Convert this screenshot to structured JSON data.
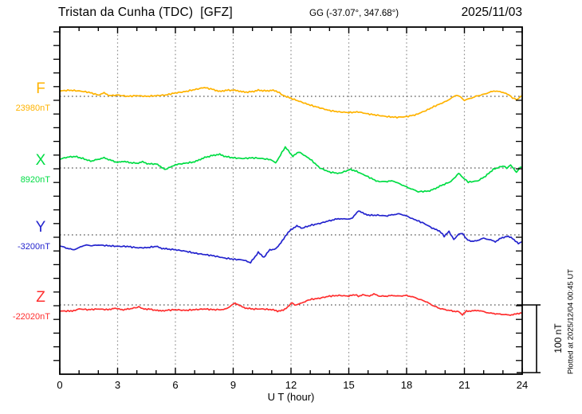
{
  "header": {
    "title": "Tristan da Cunha (TDC)  [GFZ]",
    "coordinates": "GG (-37.07°, 347.68°)",
    "date": "2025/11/03"
  },
  "x_axis": {
    "label": "U T (hour)",
    "tick_labels": [
      0,
      3,
      6,
      9,
      12,
      15,
      18,
      21,
      24
    ]
  },
  "scale_bar": {
    "label": "100 nT"
  },
  "footer_note": "Plotted at 2025/12/04 00:45 UT",
  "chart_data": {
    "type": "line",
    "title": "Tristan da Cunha (TDC) [GFZ]",
    "station": {
      "name": "Tristan da Cunha",
      "code": "TDC",
      "institute": "GFZ",
      "geographic_coords": "GG (-37.07°, 347.68°)"
    },
    "date": "2025/11/03",
    "xlabel": "U T (hour)",
    "x_range": [
      0,
      24
    ],
    "x_ticks": [
      0,
      3,
      6,
      9,
      12,
      15,
      18,
      21,
      24
    ],
    "x_minor_tick_hours": 1,
    "grid": {
      "vertical_dotted_every_hours": 3,
      "horizontal_dotted_baseline_per_channel": true
    },
    "y_scale": {
      "nT_per_minor_tick": 20,
      "scale_bar_nT": 100
    },
    "legend_position": "left",
    "series": [
      {
        "name": "F",
        "color": "#FFB300",
        "baseline_nT": 23980,
        "baseline_label": "23980nT",
        "units": "nT",
        "points_hour_offset_nT": [
          [
            0,
            8
          ],
          [
            0.5,
            9
          ],
          [
            1,
            8
          ],
          [
            1.5,
            6
          ],
          [
            2,
            2
          ],
          [
            2.3,
            5
          ],
          [
            2.6,
            1
          ],
          [
            3,
            2
          ],
          [
            3.5,
            0
          ],
          [
            4,
            1
          ],
          [
            4.5,
            0
          ],
          [
            5,
            1
          ],
          [
            5.5,
            2
          ],
          [
            6,
            5
          ],
          [
            6.5,
            7
          ],
          [
            7,
            10
          ],
          [
            7.5,
            13
          ],
          [
            8,
            10
          ],
          [
            8.3,
            7
          ],
          [
            8.6,
            9
          ],
          [
            9,
            9
          ],
          [
            9.3,
            8
          ],
          [
            9.6,
            6
          ],
          [
            10,
            7
          ],
          [
            10.3,
            9
          ],
          [
            10.7,
            8
          ],
          [
            11,
            9
          ],
          [
            11.3,
            7
          ],
          [
            11.5,
            3
          ],
          [
            11.7,
            0
          ],
          [
            12,
            -3
          ],
          [
            12.5,
            -8
          ],
          [
            13,
            -13
          ],
          [
            13.5,
            -17
          ],
          [
            14,
            -21
          ],
          [
            14.5,
            -23
          ],
          [
            15,
            -24
          ],
          [
            15.5,
            -23
          ],
          [
            16,
            -26
          ],
          [
            16.5,
            -28
          ],
          [
            17,
            -30
          ],
          [
            17.5,
            -31
          ],
          [
            18,
            -30
          ],
          [
            18.5,
            -27
          ],
          [
            19,
            -21
          ],
          [
            19.5,
            -14
          ],
          [
            20,
            -8
          ],
          [
            20.3,
            -3
          ],
          [
            20.6,
            2
          ],
          [
            20.8,
            -1
          ],
          [
            21,
            -6
          ],
          [
            21.3,
            -3
          ],
          [
            21.6,
            0
          ],
          [
            22,
            3
          ],
          [
            22.3,
            6
          ],
          [
            22.6,
            8
          ],
          [
            23,
            6
          ],
          [
            23.3,
            2
          ],
          [
            23.5,
            -2
          ],
          [
            23.7,
            -5
          ],
          [
            24,
            1
          ]
        ]
      },
      {
        "name": "X",
        "color": "#00DD44",
        "baseline_nT": 8920,
        "baseline_label": "8920nT",
        "units": "nT",
        "points_hour_offset_nT": [
          [
            0,
            13
          ],
          [
            0.4,
            16
          ],
          [
            0.8,
            17
          ],
          [
            1.2,
            14
          ],
          [
            1.6,
            10
          ],
          [
            2,
            13
          ],
          [
            2.3,
            15
          ],
          [
            2.6,
            12
          ],
          [
            3,
            8
          ],
          [
            3.3,
            10
          ],
          [
            3.6,
            8
          ],
          [
            4,
            7
          ],
          [
            4.3,
            9
          ],
          [
            4.6,
            6
          ],
          [
            5,
            6
          ],
          [
            5.3,
            1
          ],
          [
            5.5,
            -2
          ],
          [
            5.8,
            2
          ],
          [
            6,
            5
          ],
          [
            6.5,
            7
          ],
          [
            7,
            9
          ],
          [
            7.3,
            13
          ],
          [
            7.6,
            16
          ],
          [
            8,
            19
          ],
          [
            8.3,
            20
          ],
          [
            8.6,
            17
          ],
          [
            9,
            15
          ],
          [
            9.5,
            14
          ],
          [
            10,
            15
          ],
          [
            10.5,
            14
          ],
          [
            11,
            12
          ],
          [
            11.2,
            7
          ],
          [
            11.7,
            31
          ],
          [
            12.1,
            17
          ],
          [
            12.4,
            24
          ],
          [
            13,
            13
          ],
          [
            13.5,
            0
          ],
          [
            14,
            -6
          ],
          [
            14.5,
            -8
          ],
          [
            15.1,
            -2
          ],
          [
            15.4,
            -5
          ],
          [
            16,
            -13
          ],
          [
            16.5,
            -20
          ],
          [
            17,
            -20
          ],
          [
            17.3,
            -19
          ],
          [
            17.6,
            -23
          ],
          [
            18,
            -28
          ],
          [
            18.6,
            -35
          ],
          [
            19.2,
            -34
          ],
          [
            19.8,
            -26
          ],
          [
            20.3,
            -20
          ],
          [
            20.7,
            -8
          ],
          [
            21,
            -16
          ],
          [
            21.2,
            -21
          ],
          [
            21.7,
            -19
          ],
          [
            22.1,
            -12
          ],
          [
            22.5,
            -2
          ],
          [
            23,
            3
          ],
          [
            23.2,
            0
          ],
          [
            23.4,
            4
          ],
          [
            23.7,
            -6
          ],
          [
            23.9,
            1
          ],
          [
            24,
            1
          ]
        ]
      },
      {
        "name": "Y",
        "color": "#2424CE",
        "baseline_nT": -3200,
        "baseline_label": "-3200nT",
        "units": "nT",
        "points_hour_offset_nT": [
          [
            0,
            -16
          ],
          [
            0.4,
            -20
          ],
          [
            0.7,
            -22
          ],
          [
            1,
            -19
          ],
          [
            1.3,
            -15
          ],
          [
            1.7,
            -16
          ],
          [
            2,
            -15
          ],
          [
            2.5,
            -16
          ],
          [
            3,
            -17
          ],
          [
            3.5,
            -17
          ],
          [
            4,
            -19
          ],
          [
            4.5,
            -19
          ],
          [
            5,
            -17
          ],
          [
            5.3,
            -20
          ],
          [
            5.6,
            -21
          ],
          [
            6,
            -22
          ],
          [
            6.5,
            -24
          ],
          [
            7,
            -27
          ],
          [
            7.5,
            -29
          ],
          [
            8,
            -31
          ],
          [
            8.5,
            -34
          ],
          [
            9,
            -36
          ],
          [
            9.5,
            -37
          ],
          [
            9.9,
            -41
          ],
          [
            10.3,
            -26
          ],
          [
            10.6,
            -33
          ],
          [
            10.9,
            -22
          ],
          [
            11.2,
            -21
          ],
          [
            11.4,
            -15
          ],
          [
            11.7,
            -2
          ],
          [
            12,
            8
          ],
          [
            12.3,
            13
          ],
          [
            12.6,
            10
          ],
          [
            13,
            14
          ],
          [
            13.5,
            17
          ],
          [
            14,
            21
          ],
          [
            14.3,
            23
          ],
          [
            14.6,
            24
          ],
          [
            14.9,
            23
          ],
          [
            15.2,
            25
          ],
          [
            15.5,
            36
          ],
          [
            15.8,
            31
          ],
          [
            16.1,
            29
          ],
          [
            16.5,
            29
          ],
          [
            17,
            28
          ],
          [
            17.3,
            30
          ],
          [
            17.6,
            31
          ],
          [
            17.9,
            29
          ],
          [
            18.3,
            24
          ],
          [
            18.9,
            17
          ],
          [
            19.4,
            9
          ],
          [
            19.7,
            6
          ],
          [
            19.95,
            -2
          ],
          [
            20.2,
            5
          ],
          [
            20.45,
            -7
          ],
          [
            20.7,
            1
          ],
          [
            20.9,
            2
          ],
          [
            21.1,
            -6
          ],
          [
            21.4,
            -10
          ],
          [
            21.7,
            -8
          ],
          [
            22,
            -5
          ],
          [
            22.3,
            -7
          ],
          [
            22.6,
            -10
          ],
          [
            22.9,
            -5
          ],
          [
            23.2,
            -2
          ],
          [
            23.5,
            -5
          ],
          [
            23.8,
            -13
          ],
          [
            24,
            -10
          ]
        ]
      },
      {
        "name": "Z",
        "color": "#FF2E2E",
        "baseline_nT": -22020,
        "baseline_label": "-22020nT",
        "units": "nT",
        "points_hour_offset_nT": [
          [
            0,
            -9
          ],
          [
            0.5,
            -9
          ],
          [
            0.8,
            -8
          ],
          [
            1,
            -6
          ],
          [
            1.5,
            -7
          ],
          [
            2,
            -6
          ],
          [
            2.5,
            -7
          ],
          [
            2.8,
            -5
          ],
          [
            3,
            -6
          ],
          [
            3.3,
            -7
          ],
          [
            3.6,
            -6
          ],
          [
            4.1,
            -3
          ],
          [
            4.3,
            -6
          ],
          [
            4.6,
            -6
          ],
          [
            5,
            -8
          ],
          [
            5.2,
            -9
          ],
          [
            5.5,
            -8
          ],
          [
            6,
            -7
          ],
          [
            6.5,
            -8
          ],
          [
            7,
            -7
          ],
          [
            7.5,
            -6
          ],
          [
            8,
            -7
          ],
          [
            8.5,
            -7
          ],
          [
            8.8,
            -3
          ],
          [
            9.1,
            3
          ],
          [
            9.4,
            -2
          ],
          [
            9.7,
            -5
          ],
          [
            10,
            -6
          ],
          [
            10.5,
            -6
          ],
          [
            11,
            -7
          ],
          [
            11.3,
            -9
          ],
          [
            11.6,
            -8
          ],
          [
            11.9,
            -1
          ],
          [
            12.05,
            3
          ],
          [
            12.2,
            0
          ],
          [
            12.5,
            2
          ],
          [
            12.8,
            6
          ],
          [
            13,
            8
          ],
          [
            13.5,
            10
          ],
          [
            14,
            13
          ],
          [
            14.5,
            14
          ],
          [
            15,
            13
          ],
          [
            15.3,
            15
          ],
          [
            15.5,
            13
          ],
          [
            15.8,
            15
          ],
          [
            16,
            13
          ],
          [
            16.3,
            16
          ],
          [
            16.6,
            13
          ],
          [
            17,
            13
          ],
          [
            17.3,
            14
          ],
          [
            17.6,
            13
          ],
          [
            18,
            14
          ],
          [
            18.3,
            12
          ],
          [
            18.6,
            9
          ],
          [
            19,
            5
          ],
          [
            19.3,
            0
          ],
          [
            19.7,
            -5
          ],
          [
            20,
            -7
          ],
          [
            20.4,
            -9
          ],
          [
            20.7,
            -10
          ],
          [
            20.9,
            -15
          ],
          [
            21.1,
            -9
          ],
          [
            21.4,
            -9
          ],
          [
            21.7,
            -8
          ],
          [
            22,
            -10
          ],
          [
            22.3,
            -12
          ],
          [
            22.6,
            -13
          ],
          [
            23,
            -14
          ],
          [
            23.3,
            -15
          ],
          [
            23.6,
            -14
          ],
          [
            23.9,
            -12
          ],
          [
            24,
            -12
          ]
        ]
      }
    ]
  }
}
